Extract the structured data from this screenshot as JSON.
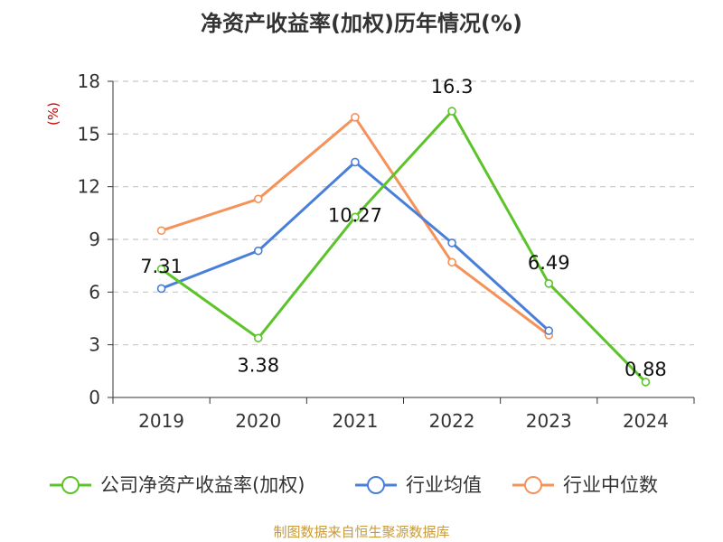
{
  "chart_data": {
    "type": "line",
    "title": "净资产收益率(加权)历年情况(%)",
    "xlabel": "",
    "ylabel": "(%)",
    "categories": [
      "2019",
      "2020",
      "2021",
      "2022",
      "2023",
      "2024"
    ],
    "ylim": [
      0,
      18
    ],
    "yticks": [
      0,
      3,
      6,
      9,
      12,
      15,
      18
    ],
    "grid": true,
    "legend_position": "bottom",
    "series": [
      {
        "name": "公司净资产收益率(加权)",
        "color": "#5cc42a",
        "values": [
          7.31,
          3.38,
          10.27,
          16.3,
          6.49,
          0.88
        ],
        "labels": [
          "7.31",
          "3.38",
          "10.27",
          "16.3",
          "6.49",
          "0.88"
        ]
      },
      {
        "name": "行业均值",
        "color": "#4a7fd9",
        "values": [
          6.2,
          8.35,
          13.4,
          8.8,
          3.8,
          null
        ]
      },
      {
        "name": "行业中位数",
        "color": "#f5925a",
        "values": [
          9.5,
          11.3,
          15.95,
          7.7,
          3.55,
          null
        ]
      }
    ]
  },
  "source_text": "制图数据来自恒生聚源数据库"
}
